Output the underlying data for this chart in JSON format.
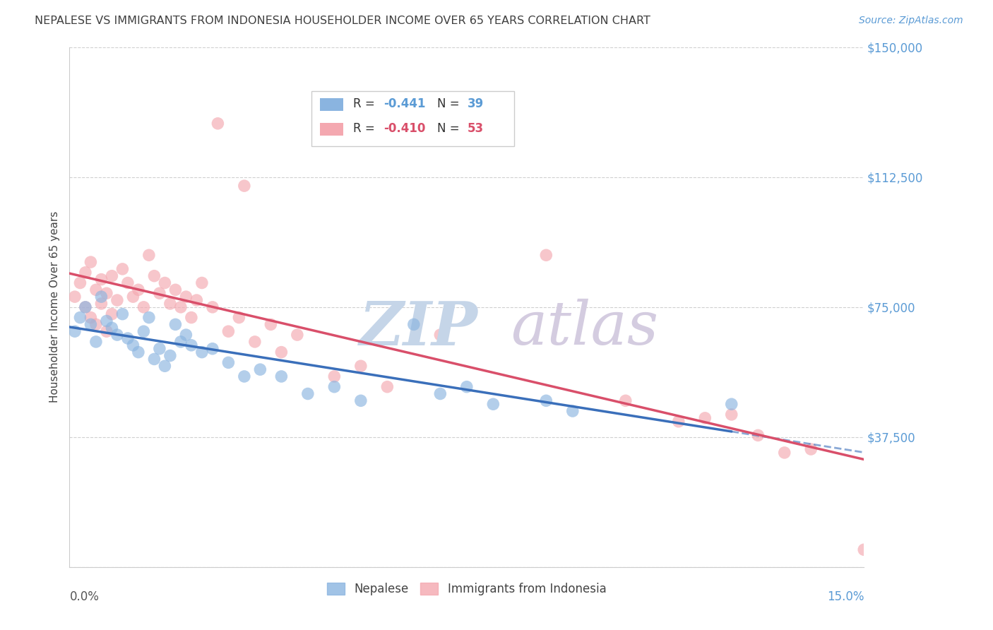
{
  "title": "NEPALESE VS IMMIGRANTS FROM INDONESIA HOUSEHOLDER INCOME OVER 65 YEARS CORRELATION CHART",
  "source": "Source: ZipAtlas.com",
  "ylabel": "Householder Income Over 65 years",
  "xlim": [
    0.0,
    0.15
  ],
  "ylim": [
    0,
    150000
  ],
  "yticks": [
    0,
    37500,
    75000,
    112500,
    150000
  ],
  "ytick_labels": [
    "",
    "$37,500",
    "$75,000",
    "$112,500",
    "$150,000"
  ],
  "xticks": [
    0.0,
    0.025,
    0.05,
    0.075,
    0.1,
    0.125,
    0.15
  ],
  "nepalese_color": "#8ab4e0",
  "indonesia_color": "#f4a8b0",
  "nepalese_line_color": "#3a6fba",
  "indonesia_line_color": "#d94f6a",
  "watermark_zip_color": "#c5d8ee",
  "watermark_atlas_color": "#d0c8e0",
  "right_label_color": "#5b9bd5",
  "title_color": "#404040",
  "source_color": "#5b9bd5",
  "nepalese_x": [
    0.001,
    0.002,
    0.003,
    0.004,
    0.005,
    0.006,
    0.007,
    0.008,
    0.009,
    0.01,
    0.011,
    0.012,
    0.013,
    0.014,
    0.015,
    0.016,
    0.017,
    0.018,
    0.019,
    0.02,
    0.021,
    0.022,
    0.023,
    0.025,
    0.027,
    0.03,
    0.033,
    0.036,
    0.04,
    0.045,
    0.05,
    0.055,
    0.065,
    0.07,
    0.075,
    0.08,
    0.09,
    0.095,
    0.125
  ],
  "nepalese_y": [
    68000,
    72000,
    75000,
    70000,
    65000,
    78000,
    71000,
    69000,
    67000,
    73000,
    66000,
    64000,
    62000,
    68000,
    72000,
    60000,
    63000,
    58000,
    61000,
    70000,
    65000,
    67000,
    64000,
    62000,
    63000,
    59000,
    55000,
    57000,
    55000,
    50000,
    52000,
    48000,
    70000,
    50000,
    52000,
    47000,
    48000,
    45000,
    47000
  ],
  "indonesia_x": [
    0.001,
    0.002,
    0.003,
    0.003,
    0.004,
    0.004,
    0.005,
    0.005,
    0.006,
    0.006,
    0.007,
    0.007,
    0.008,
    0.008,
    0.009,
    0.01,
    0.011,
    0.012,
    0.013,
    0.014,
    0.015,
    0.016,
    0.017,
    0.018,
    0.019,
    0.02,
    0.021,
    0.022,
    0.023,
    0.024,
    0.025,
    0.027,
    0.03,
    0.032,
    0.035,
    0.038,
    0.04,
    0.043,
    0.05,
    0.055,
    0.06,
    0.07,
    0.09,
    0.105,
    0.115,
    0.12,
    0.125,
    0.13,
    0.135,
    0.14,
    0.15,
    0.028,
    0.033
  ],
  "indonesia_y": [
    78000,
    82000,
    85000,
    75000,
    88000,
    72000,
    80000,
    70000,
    76000,
    83000,
    79000,
    68000,
    84000,
    73000,
    77000,
    86000,
    82000,
    78000,
    80000,
    75000,
    90000,
    84000,
    79000,
    82000,
    76000,
    80000,
    75000,
    78000,
    72000,
    77000,
    82000,
    75000,
    68000,
    72000,
    65000,
    70000,
    62000,
    67000,
    55000,
    58000,
    52000,
    67000,
    90000,
    48000,
    42000,
    43000,
    44000,
    38000,
    33000,
    34000,
    5000,
    128000,
    110000
  ]
}
